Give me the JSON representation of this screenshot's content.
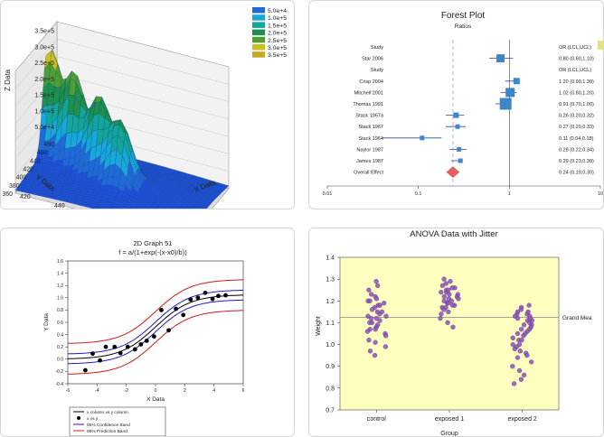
{
  "chart_data": [
    {
      "type": "surface",
      "xlabel": "X Data",
      "ylabel": "Y Data",
      "zlabel": "Z Data",
      "x_ticks": [
        "420",
        "440",
        "460",
        "480",
        "500",
        "520"
      ],
      "y_ticks": [
        "360",
        "380",
        "400",
        "420",
        "440",
        "460",
        "480"
      ],
      "z_ticks": [
        "5.0e+4",
        "1.0e+5",
        "1.5e+5",
        "2.0e+5",
        "2.5e+5",
        "3.0e+5",
        "3.5e+5"
      ],
      "legend": [
        {
          "label": "5.0e+4",
          "color": "#1f6ad8"
        },
        {
          "label": "1.0e+5",
          "color": "#19a6d8"
        },
        {
          "label": "1.5e+5",
          "color": "#14a49a"
        },
        {
          "label": "2.0e+5",
          "color": "#1e8f4e"
        },
        {
          "label": "2.5e+5",
          "color": "#4f9e34"
        },
        {
          "label": "3.0e+5",
          "color": "#c8c020"
        },
        {
          "label": "3.5e+5",
          "color": "#c8a820"
        }
      ],
      "peaks": [
        {
          "x": 422,
          "y": 450,
          "z": 350000
        },
        {
          "x": 438,
          "y": 440,
          "z": 300000
        },
        {
          "x": 455,
          "y": 428,
          "z": 260000
        },
        {
          "x": 470,
          "y": 415,
          "z": 220000
        }
      ]
    },
    {
      "type": "forest",
      "title": "Forest Plot",
      "subtitle": "Ratios",
      "x_ticks": [
        "0.01",
        "0.1",
        "1",
        "10"
      ],
      "xscale": "log",
      "xlim": [
        0.01,
        10
      ],
      "rows": [
        {
          "label": "Study",
          "value_text": "OR (LCL,UCL)",
          "or": null,
          "lcl": null,
          "ucl": null,
          "w": 0
        },
        {
          "label": "Star 2006",
          "value_text": "0.80 (0.60,1.10)",
          "or": 0.8,
          "lcl": 0.6,
          "ucl": 1.1,
          "w": 9
        },
        {
          "label": "Study",
          "value_text": "OR (LCL,UCL)",
          "or": null,
          "lcl": null,
          "ucl": null,
          "w": 0
        },
        {
          "label": "Crisp 2004",
          "value_text": "1.20 (0.90,1.30)",
          "or": 1.2,
          "lcl": 0.9,
          "ucl": 1.3,
          "w": 7
        },
        {
          "label": "Mitchell 2001",
          "value_text": "1.02 (0.80,1.20)",
          "or": 1.02,
          "lcl": 0.8,
          "ucl": 1.2,
          "w": 10
        },
        {
          "label": "Thomas 1991",
          "value_text": "0.91 (0.70,1.00)",
          "or": 0.91,
          "lcl": 0.7,
          "ucl": 1.0,
          "w": 13
        },
        {
          "label": "Stack 1967a",
          "value_text": "0.26 (0.20,0.32)",
          "or": 0.26,
          "lcl": 0.2,
          "ucl": 0.32,
          "w": 6
        },
        {
          "label": "Stack 1967",
          "value_text": "0.27 (0.20,0.33)",
          "or": 0.27,
          "lcl": 0.2,
          "ucl": 0.33,
          "w": 5
        },
        {
          "label": "Stack 1964",
          "value_text": "0.11 (0.04,0.18)",
          "or": 0.11,
          "lcl": 0.04,
          "ucl": 0.18,
          "w": 5
        },
        {
          "label": "Naylor 1987",
          "value_text": "0.28 (0.22,0.34)",
          "or": 0.28,
          "lcl": 0.22,
          "ucl": 0.34,
          "w": 5
        },
        {
          "label": "James 1987",
          "value_text": "0.29 (0.23,0.30)",
          "or": 0.29,
          "lcl": 0.23,
          "ucl": 0.3,
          "w": 5
        },
        {
          "label": "Overall Effect",
          "value_text": "0.24 (0.19,0.30)",
          "or": 0.24,
          "lcl": 0.19,
          "ucl": 0.3,
          "w": 0,
          "overall": true
        }
      ]
    },
    {
      "type": "scatter",
      "title": "2D Graph 51",
      "subtitle": "f = a/(1+exp(-(x-x0)/b))",
      "xlabel": "X Data",
      "ylabel": "Y Data",
      "xlim": [
        -6,
        6
      ],
      "ylim": [
        -0.4,
        1.6
      ],
      "x_ticks": [
        "-6",
        "-4",
        "-2",
        "0",
        "2",
        "4",
        "6"
      ],
      "y_ticks": [
        "-0.4",
        "-0.2",
        "0.0",
        "0.2",
        "0.4",
        "0.6",
        "0.8",
        "1.0",
        "1.2",
        "1.4",
        "1.6"
      ],
      "fit": {
        "a": 1.05,
        "x0": 0,
        "b": 1.2
      },
      "conf_offset": 0.08,
      "pred_offset": 0.25,
      "points": [
        {
          "x": -4.8,
          "y": -0.18
        },
        {
          "x": -4.3,
          "y": 0.09
        },
        {
          "x": -3.8,
          "y": -0.02
        },
        {
          "x": -3.4,
          "y": 0.2
        },
        {
          "x": -2.8,
          "y": 0.2
        },
        {
          "x": -2.4,
          "y": 0.1
        },
        {
          "x": -1.9,
          "y": 0.2
        },
        {
          "x": -1.4,
          "y": 0.16
        },
        {
          "x": -1.0,
          "y": 0.24
        },
        {
          "x": -0.6,
          "y": 0.3
        },
        {
          "x": -0.1,
          "y": 0.37
        },
        {
          "x": 0.4,
          "y": 0.8
        },
        {
          "x": 0.9,
          "y": 0.47
        },
        {
          "x": 1.4,
          "y": 0.82
        },
        {
          "x": 1.9,
          "y": 0.72
        },
        {
          "x": 2.4,
          "y": 0.97
        },
        {
          "x": 2.9,
          "y": 1.0
        },
        {
          "x": 3.4,
          "y": 1.08
        },
        {
          "x": 3.9,
          "y": 0.98
        },
        {
          "x": 4.3,
          "y": 1.03
        },
        {
          "x": 4.8,
          "y": 1.04
        }
      ],
      "legend": [
        {
          "label": "x column vs y column",
          "kind": "line",
          "color": "#000000"
        },
        {
          "label": "x vs y",
          "kind": "dot",
          "color": "#000000"
        },
        {
          "label": "95% Confidence Band",
          "kind": "line",
          "color": "#1a1ac8"
        },
        {
          "label": "95% Prediction Band",
          "kind": "line",
          "color": "#d01818"
        }
      ]
    },
    {
      "type": "strip",
      "title": "ANOVA Data with Jitter",
      "xlabel": "Group",
      "ylabel": "Weight",
      "ylim": [
        0.7,
        1.4
      ],
      "y_ticks": [
        "0.7",
        "0.8",
        "0.9",
        "1.0",
        "1.1",
        "1.2",
        "1.3",
        "1.4"
      ],
      "categories": [
        "control",
        "exposed 1",
        "exposed 2"
      ],
      "grand_mean": 1.125,
      "grand_mean_label": "Grand Mea",
      "background": "#ffffc0",
      "point_color": "#8a52b8",
      "groups": [
        {
          "name": "control",
          "values": [
            1.29,
            1.27,
            1.25,
            1.23,
            1.22,
            1.21,
            1.2,
            1.19,
            1.18,
            1.17,
            1.16,
            1.15,
            1.14,
            1.13,
            1.12,
            1.12,
            1.11,
            1.1,
            1.09,
            1.08,
            1.07,
            1.06,
            1.05,
            1.04,
            1.02,
            1.01,
            0.99,
            0.97,
            0.95,
            1.15,
            1.18,
            1.1,
            1.2,
            1.13,
            1.07
          ]
        },
        {
          "name": "exposed 1",
          "values": [
            1.3,
            1.29,
            1.28,
            1.27,
            1.26,
            1.25,
            1.24,
            1.24,
            1.23,
            1.22,
            1.22,
            1.21,
            1.2,
            1.2,
            1.19,
            1.18,
            1.18,
            1.17,
            1.16,
            1.15,
            1.14,
            1.12,
            1.1,
            1.08,
            1.26,
            1.21,
            1.17,
            1.19,
            1.23,
            1.25
          ]
        },
        {
          "name": "exposed 2",
          "values": [
            1.18,
            1.17,
            1.16,
            1.15,
            1.14,
            1.14,
            1.13,
            1.12,
            1.11,
            1.1,
            1.09,
            1.08,
            1.07,
            1.06,
            1.05,
            1.04,
            1.03,
            1.02,
            1.0,
            0.99,
            0.97,
            0.96,
            0.95,
            0.94,
            0.92,
            0.9,
            0.88,
            0.86,
            0.84,
            0.82,
            1.11,
            1.07,
            1.13,
            1.09,
            1.02,
            0.98,
            1.15,
            1.12,
            1.05,
            1.0
          ]
        }
      ]
    }
  ]
}
